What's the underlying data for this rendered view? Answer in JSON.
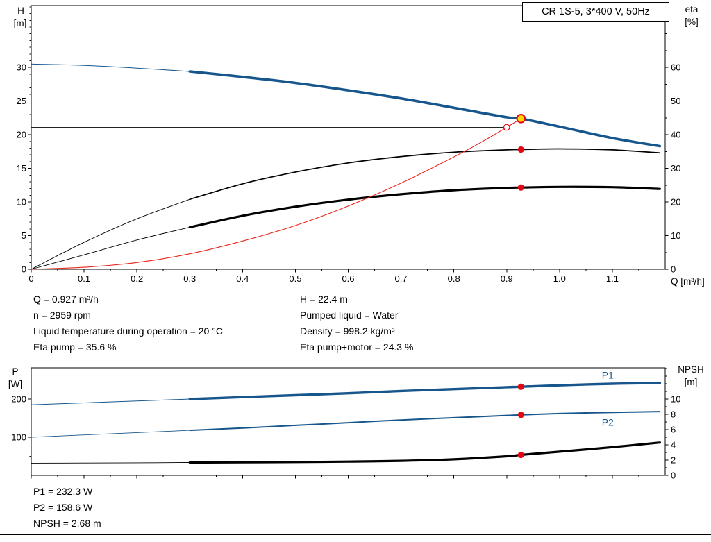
{
  "colors": {
    "curve_blue": "#17568c",
    "curve_black": "#000000",
    "curve_red": "#e8251b",
    "marker_red": "#e30613",
    "duty_yellow": "#ffd800"
  },
  "info_top": {
    "left": [
      "Q = 0.927 m³/h",
      "n = 2959 rpm",
      "Liquid temperature during operation = 20 °C",
      "Eta pump = 35.6 %"
    ],
    "right": [
      "H = 22.4 m",
      "Pumped liquid = Water",
      "Density = 998.2 kg/m³",
      "Eta pump+motor = 24.3 %"
    ]
  },
  "info_bottom": [
    "P1 = 232.3 W",
    "P2 = 158.6 W",
    "NPSH = 2.68 m"
  ],
  "chart_data": [
    {
      "id": "qh-eta",
      "type": "line",
      "title": "CR 1S-5, 3*400 V, 50Hz",
      "x_axis": {
        "name": "Q [m³/h]",
        "lim": [
          0,
          1.2
        ],
        "ticks": [
          0,
          0.1,
          0.2,
          0.3,
          0.4,
          0.5,
          0.6,
          0.7,
          0.8,
          0.9,
          1.0,
          1.1
        ],
        "minor_step": 0.05,
        "show_labels": true
      },
      "left_axis": {
        "name": "H",
        "unit": "[m]",
        "lim": [
          0,
          39.2
        ],
        "ticks": [
          0,
          5,
          10,
          15,
          20,
          25,
          30
        ],
        "minor_step": 1
      },
      "right_axis": {
        "name": "eta",
        "unit": "[%]",
        "lim": [
          0,
          78.4
        ],
        "ticks": [
          0,
          10,
          20,
          30,
          40,
          50,
          60
        ],
        "minor_step": 5
      },
      "series": [
        {
          "name": "head-curve",
          "legend": "H",
          "axis": "left",
          "color": "#17568c",
          "width": 3.6,
          "thin_width": 1,
          "thin_until": 0.3,
          "x": [
            0,
            0.1,
            0.2,
            0.3,
            0.4,
            0.5,
            0.6,
            0.7,
            0.8,
            0.9,
            0.927,
            1.0,
            1.1,
            1.19
          ],
          "y": [
            30.5,
            30.3,
            29.9,
            29.4,
            28.6,
            27.7,
            26.6,
            25.4,
            24.0,
            22.6,
            22.4,
            21.2,
            19.5,
            18.3
          ]
        },
        {
          "name": "eta-pump-curve",
          "legend": "Eta pump",
          "axis": "right",
          "color": "#000000",
          "width": 1.7,
          "thin_width": 0.9,
          "thin_until": 0.3,
          "x": [
            0,
            0.1,
            0.2,
            0.3,
            0.4,
            0.5,
            0.6,
            0.7,
            0.8,
            0.9,
            0.927,
            1.0,
            1.1,
            1.19
          ],
          "y": [
            0,
            8.0,
            15.0,
            20.8,
            25.4,
            28.9,
            31.6,
            33.5,
            34.8,
            35.5,
            35.6,
            35.8,
            35.5,
            34.6
          ]
        },
        {
          "name": "eta-pump-motor-curve",
          "legend": "Eta pump+motor",
          "axis": "right",
          "color": "#000000",
          "width": 3.2,
          "thin_width": 0.9,
          "thin_until": 0.3,
          "x": [
            0,
            0.1,
            0.2,
            0.3,
            0.4,
            0.5,
            0.6,
            0.7,
            0.8,
            0.9,
            0.927,
            1.0,
            1.1,
            1.19
          ],
          "y": [
            0,
            4.3,
            8.7,
            12.5,
            15.9,
            18.6,
            20.7,
            22.3,
            23.5,
            24.2,
            24.3,
            24.5,
            24.4,
            23.9
          ]
        },
        {
          "name": "system-curve",
          "legend": "System curve",
          "axis": "left",
          "color": "#e8251b",
          "width": 1.1,
          "thin_width": 1.1,
          "thin_until": 0,
          "x": [
            0,
            0.1,
            0.2,
            0.3,
            0.4,
            0.5,
            0.6,
            0.7,
            0.8,
            0.85,
            0.9,
            0.927
          ],
          "y": [
            0,
            0.3,
            1.0,
            2.3,
            4.2,
            6.5,
            9.4,
            12.8,
            16.7,
            18.8,
            21.1,
            22.4
          ]
        }
      ],
      "duty_point": {
        "x": 0.927,
        "y": 22.4,
        "axis": "left"
      },
      "requested_point": {
        "x": 0.9,
        "y": 21.1,
        "axis": "left"
      },
      "guides": {
        "vline_x": 0.927,
        "vline_y_top": 22.4,
        "hline_y": 21.1,
        "hline_x_end": 0.9
      },
      "markers": [
        {
          "x": 0.927,
          "y": 35.6,
          "axis": "right"
        },
        {
          "x": 0.927,
          "y": 24.3,
          "axis": "right"
        }
      ]
    },
    {
      "id": "power-npsh",
      "type": "line",
      "title": "",
      "x_axis": {
        "name": "",
        "lim": [
          0,
          1.2
        ],
        "ticks": [
          0,
          0.1,
          0.2,
          0.3,
          0.4,
          0.5,
          0.6,
          0.7,
          0.8,
          0.9,
          1.0,
          1.1
        ],
        "minor_step": 0.05,
        "show_labels": false
      },
      "left_axis": {
        "name": "P",
        "unit": "[W]",
        "lim": [
          0,
          281.8
        ],
        "ticks": [
          100,
          200
        ],
        "minor_step": 50
      },
      "right_axis": {
        "name": "NPSH",
        "unit": "[m]",
        "lim": [
          0,
          14.1
        ],
        "ticks": [
          0,
          2,
          4,
          6,
          8,
          10
        ],
        "minor_step": 1
      },
      "series": [
        {
          "name": "p1-curve",
          "legend": "P1",
          "axis": "left",
          "color": "#17568c",
          "width": 3.4,
          "thin_width": 1,
          "thin_until": 0.3,
          "x": [
            0,
            0.1,
            0.2,
            0.3,
            0.4,
            0.5,
            0.6,
            0.7,
            0.8,
            0.9,
            0.927,
            1.0,
            1.1,
            1.19
          ],
          "y": [
            185,
            190,
            195,
            200,
            205,
            210,
            215,
            221,
            226,
            231,
            232.3,
            236,
            240,
            242
          ]
        },
        {
          "name": "p2-curve",
          "legend": "P2",
          "axis": "left",
          "color": "#17568c",
          "width": 2.0,
          "thin_width": 0.9,
          "thin_until": 0.3,
          "x": [
            0,
            0.1,
            0.2,
            0.3,
            0.4,
            0.5,
            0.6,
            0.7,
            0.8,
            0.9,
            0.927,
            1.0,
            1.1,
            1.19
          ],
          "y": [
            100,
            106,
            112,
            118,
            124,
            131,
            138,
            145,
            151,
            157,
            158.6,
            162,
            165,
            167
          ]
        },
        {
          "name": "npsh-curve",
          "legend": "NPSH",
          "axis": "right",
          "color": "#000000",
          "width": 3.2,
          "thin_width": 0.9,
          "thin_until": 0.3,
          "x": [
            0,
            0.1,
            0.2,
            0.3,
            0.4,
            0.5,
            0.6,
            0.7,
            0.8,
            0.9,
            0.927,
            1.0,
            1.1,
            1.19
          ],
          "y": [
            1.6,
            1.62,
            1.65,
            1.68,
            1.71,
            1.75,
            1.8,
            1.9,
            2.1,
            2.5,
            2.68,
            3.1,
            3.7,
            4.3
          ]
        }
      ],
      "series_labels": [
        {
          "text": "P1",
          "x": 1.08,
          "y": 262,
          "axis": "left",
          "color": "#17568c"
        },
        {
          "text": "P2",
          "x": 1.08,
          "y": 138,
          "axis": "left",
          "color": "#17568c"
        }
      ],
      "markers": [
        {
          "x": 0.927,
          "y": 232.3,
          "axis": "left"
        },
        {
          "x": 0.927,
          "y": 158.6,
          "axis": "left"
        },
        {
          "x": 0.927,
          "y": 2.68,
          "axis": "right"
        }
      ]
    }
  ]
}
